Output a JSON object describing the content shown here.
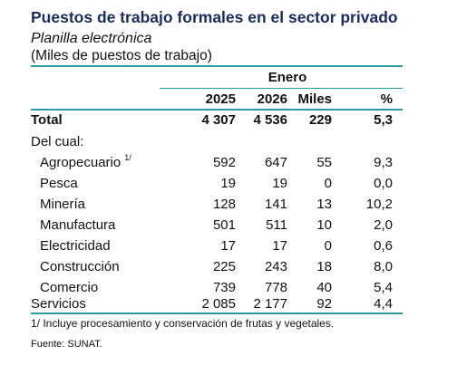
{
  "title": "Puestos de trabajo formales en el sector privado",
  "subtitle": "Planilla electrónica",
  "unit": "(Miles de puestos de trabajo)",
  "group_header": "Enero",
  "columns": [
    "2025",
    "2026",
    "Miles",
    "%"
  ],
  "total": {
    "label": "Total",
    "values": [
      "4 307",
      "4 536",
      "229",
      "5,3"
    ]
  },
  "section_label": "Del cual:",
  "rows": [
    {
      "label": "Agropecuario",
      "note": "1/",
      "values": [
        "592",
        "647",
        "55",
        "9,3"
      ]
    },
    {
      "label": "Pesca",
      "values": [
        "19",
        "19",
        "0",
        "0,0"
      ]
    },
    {
      "label": "Minería",
      "values": [
        "128",
        "141",
        "13",
        "10,2"
      ]
    },
    {
      "label": "Manufactura",
      "values": [
        "501",
        "511",
        "10",
        "2,0"
      ]
    },
    {
      "label": "Electricidad",
      "values": [
        "17",
        "17",
        "0",
        "0,6"
      ]
    },
    {
      "label": "Construcción",
      "values": [
        "225",
        "243",
        "18",
        "8,0"
      ]
    },
    {
      "label": "Comercio",
      "values": [
        "739",
        "778",
        "40",
        "5,4"
      ]
    },
    {
      "label": "Servicios",
      "values": [
        "2 085",
        "2 177",
        "92",
        "4,4"
      ]
    }
  ],
  "footnote": "1/ Incluye procesamiento y conservación de frutas y vegetales.",
  "source": "Fuente: SUNAT.",
  "colors": {
    "accent_rule": "#2a9aa2",
    "title": "#1a2b5c"
  }
}
